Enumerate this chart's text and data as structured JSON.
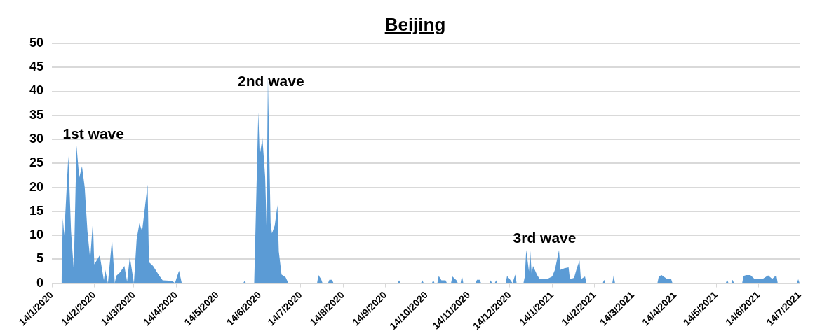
{
  "chart_data": {
    "type": "area",
    "title": "Beijing",
    "x": [
      "2020-01-21",
      "2020-01-22",
      "2020-01-23",
      "2020-01-26",
      "2020-01-28",
      "2020-01-30",
      "2020-02-01",
      "2020-02-03",
      "2020-02-05",
      "2020-02-07",
      "2020-02-09",
      "2020-02-11",
      "2020-02-13",
      "2020-02-14",
      "2020-02-18",
      "2020-02-21",
      "2020-02-22",
      "2020-02-24",
      "2020-02-27",
      "2020-02-29",
      "2020-03-01",
      "2020-03-04",
      "2020-03-07",
      "2020-03-09",
      "2020-03-11",
      "2020-03-14",
      "2020-03-16",
      "2020-03-18",
      "2020-03-20",
      "2020-03-22",
      "2020-03-24",
      "2020-03-25",
      "2020-03-28",
      "2020-04-01",
      "2020-04-04",
      "2020-04-11",
      "2020-04-13",
      "2020-04-16",
      "2020-04-18",
      "2020-06-02",
      "2020-06-03",
      "2020-06-04",
      "2020-06-10",
      "2020-06-13",
      "2020-06-14",
      "2020-06-16",
      "2020-06-18",
      "2020-06-19",
      "2020-06-20",
      "2020-06-22",
      "2020-06-23",
      "2020-06-25",
      "2020-06-27",
      "2020-06-28",
      "2020-06-30",
      "2020-07-03",
      "2020-07-05",
      "2020-07-26",
      "2020-07-27",
      "2020-07-29",
      "2020-07-30",
      "2020-08-03",
      "2020-08-04",
      "2020-08-06",
      "2020-08-07",
      "2020-09-23",
      "2020-09-24",
      "2020-09-25",
      "2020-10-10",
      "2020-10-11",
      "2020-10-12",
      "2020-10-18",
      "2020-10-19",
      "2020-10-20",
      "2020-10-22",
      "2020-10-23",
      "2020-10-25",
      "2020-10-28",
      "2020-10-29",
      "2020-11-01",
      "2020-11-02",
      "2020-11-05",
      "2020-11-06",
      "2020-11-08",
      "2020-11-09",
      "2020-11-10",
      "2020-11-19",
      "2020-11-20",
      "2020-11-22",
      "2020-11-23",
      "2020-11-29",
      "2020-11-30",
      "2020-12-01",
      "2020-12-03",
      "2020-12-04",
      "2020-12-05",
      "2020-12-11",
      "2020-12-12",
      "2020-12-14",
      "2020-12-16",
      "2020-12-18",
      "2020-12-19",
      "2020-12-24",
      "2020-12-25",
      "2020-12-26",
      "2020-12-28",
      "2020-12-29",
      "2020-12-30",
      "2020-12-31",
      "2021-01-03",
      "2021-01-05",
      "2021-01-10",
      "2021-01-14",
      "2021-01-16",
      "2021-01-19",
      "2021-01-20",
      "2021-01-23",
      "2021-01-26",
      "2021-01-27",
      "2021-01-30",
      "2021-02-01",
      "2021-02-03",
      "2021-02-04",
      "2021-02-07",
      "2021-02-08",
      "2021-02-20",
      "2021-02-21",
      "2021-02-22",
      "2021-02-27",
      "2021-02-28",
      "2021-03-01",
      "2021-04-01",
      "2021-04-02",
      "2021-04-04",
      "2021-04-08",
      "2021-04-11",
      "2021-04-12",
      "2021-05-21",
      "2021-05-22",
      "2021-05-23",
      "2021-05-25",
      "2021-05-26",
      "2021-05-27",
      "2021-06-02",
      "2021-06-03",
      "2021-06-05",
      "2021-06-08",
      "2021-06-11",
      "2021-06-17",
      "2021-06-21",
      "2021-06-24",
      "2021-06-27",
      "2021-06-28",
      "2021-07-12",
      "2021-07-13",
      "2021-07-14"
    ],
    "series": [
      {
        "color": "#5b9bd5",
        "values": [
          0,
          13.5,
          10,
          26.5,
          10.8,
          2.8,
          28.7,
          22,
          24.4,
          20,
          10.8,
          5,
          13,
          3.9,
          5.8,
          0.6,
          2.8,
          0,
          9.2,
          0,
          1.5,
          2.3,
          3.6,
          0.3,
          5.5,
          0,
          9.2,
          12.5,
          10.9,
          15.7,
          20.6,
          4.4,
          3.6,
          1.8,
          0.6,
          0.5,
          0,
          2.6,
          0,
          0,
          0.5,
          0,
          0,
          35.7,
          26.5,
          30.3,
          22.2,
          12,
          43,
          12.5,
          10.4,
          12,
          16.3,
          6.6,
          1.8,
          1.2,
          0,
          0,
          1.7,
          0.8,
          0,
          0,
          0.7,
          0.7,
          0,
          0,
          0.6,
          0,
          0,
          0.6,
          0,
          0,
          0.6,
          0,
          0,
          1.5,
          0.6,
          0.6,
          0,
          0,
          1.4,
          0.6,
          0,
          0,
          1.5,
          0,
          0,
          0.7,
          0.7,
          0,
          0,
          0.6,
          0,
          0,
          0.6,
          0,
          0,
          1.5,
          0.8,
          0,
          1.8,
          0,
          0,
          1.4,
          6.9,
          2.5,
          6.7,
          1.9,
          3.6,
          1.7,
          0.8,
          0.8,
          1.4,
          2.8,
          6.9,
          2.8,
          3.1,
          3.3,
          0.8,
          1.1,
          3.1,
          4.7,
          0.8,
          1.4,
          0,
          0,
          0.7,
          0,
          0,
          1.6,
          0,
          0,
          1.4,
          1.7,
          0.9,
          0.9,
          0,
          0,
          0.7,
          0,
          0,
          0.7,
          0,
          0,
          1.5,
          1.7,
          1.7,
          0.9,
          0.9,
          1.6,
          0.9,
          1.7,
          0,
          0,
          0.8,
          0
        ]
      }
    ],
    "xlim": [
      "2020-01-14",
      "2021-07-14"
    ],
    "xticks": [
      {
        "value": "2020-01-14",
        "label": "14/1/2020"
      },
      {
        "value": "2020-02-14",
        "label": "14/2/2020"
      },
      {
        "value": "2020-03-14",
        "label": "14/3/2020"
      },
      {
        "value": "2020-04-14",
        "label": "14/4/2020"
      },
      {
        "value": "2020-05-14",
        "label": "14/5/2020"
      },
      {
        "value": "2020-06-14",
        "label": "14/6/2020"
      },
      {
        "value": "2020-07-14",
        "label": "14/7/2020"
      },
      {
        "value": "2020-08-14",
        "label": "14/8/2020"
      },
      {
        "value": "2020-09-14",
        "label": "14/9/2020"
      },
      {
        "value": "2020-10-14",
        "label": "14/10/2020"
      },
      {
        "value": "2020-11-14",
        "label": "14/11/2020"
      },
      {
        "value": "2020-12-14",
        "label": "14/12/2020"
      },
      {
        "value": "2021-01-14",
        "label": "14/1/2021"
      },
      {
        "value": "2021-02-14",
        "label": "14/2/2021"
      },
      {
        "value": "2021-03-14",
        "label": "14/3/2021"
      },
      {
        "value": "2021-04-14",
        "label": "14/4/2021"
      },
      {
        "value": "2021-05-14",
        "label": "14/5/2021"
      },
      {
        "value": "2021-06-14",
        "label": "14/6/2021"
      },
      {
        "value": "2021-07-14",
        "label": "14/7/2021"
      }
    ],
    "ylim": [
      0,
      50
    ],
    "yticks": [
      0,
      5,
      10,
      15,
      20,
      25,
      30,
      35,
      40,
      45,
      50
    ],
    "grid": "y",
    "legend": false,
    "annotations": [
      "1st wave",
      "2nd wave",
      "3rd wave"
    ]
  }
}
